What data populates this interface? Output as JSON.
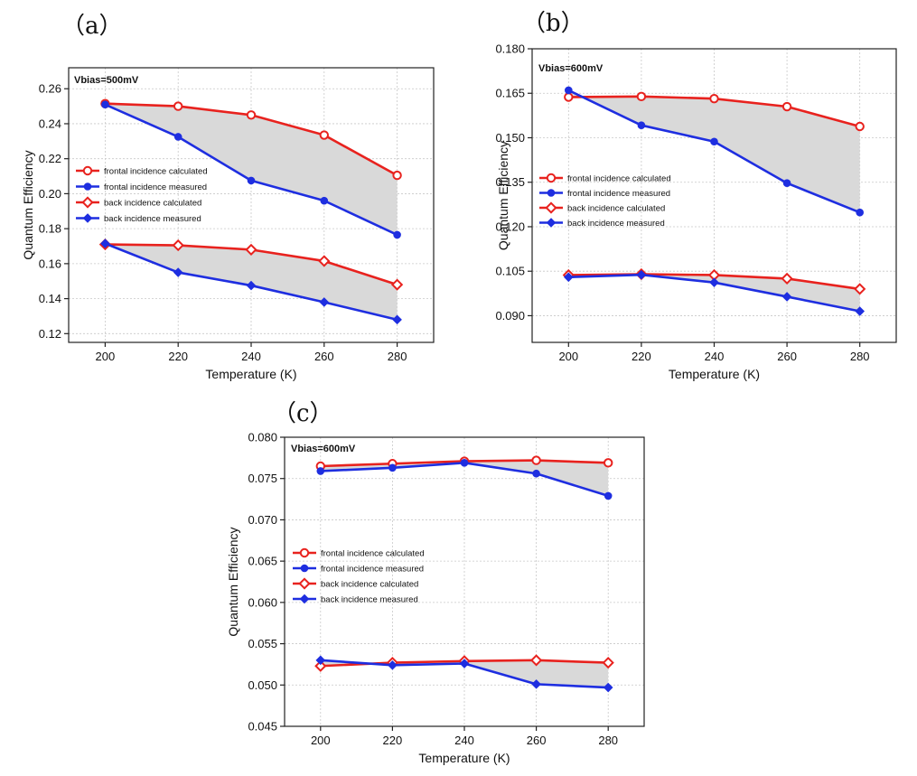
{
  "chart_data": [
    {
      "panel_label": "（a）",
      "type": "line",
      "annotation": "Vbias=500mV",
      "xlabel": "Temperature (K)",
      "ylabel": "Quantum Efficiency",
      "x": [
        200,
        220,
        240,
        260,
        280
      ],
      "xlim": [
        190,
        290
      ],
      "ylim": [
        0.115,
        0.272
      ],
      "yticks": [
        0.12,
        0.14,
        0.16,
        0.18,
        0.2,
        0.22,
        0.24,
        0.26
      ],
      "ytick_labels": [
        "0.12",
        "0.14",
        "0.16",
        "0.18",
        "0.20",
        "0.22",
        "0.24",
        "0.26"
      ],
      "xticks": [
        200,
        220,
        240,
        260,
        280
      ],
      "xtick_labels": [
        "200",
        "220",
        "240",
        "260",
        "280"
      ],
      "grid": true,
      "legend_position": "middle-left",
      "series": [
        {
          "name": "frontal incidence calculated",
          "values": [
            0.2515,
            0.25,
            0.245,
            0.2335,
            0.2105
          ],
          "color": "#e8221e",
          "marker": "circle-open"
        },
        {
          "name": "frontal incidence measured",
          "values": [
            0.251,
            0.2325,
            0.2075,
            0.196,
            0.1765
          ],
          "color": "#1e2ee0",
          "marker": "circle-filled"
        },
        {
          "name": "back incidence calculated",
          "values": [
            0.171,
            0.1705,
            0.168,
            0.1615,
            0.148
          ],
          "color": "#e8221e",
          "marker": "diamond-open"
        },
        {
          "name": "back incidence measured",
          "values": [
            0.1715,
            0.155,
            0.1475,
            0.138,
            0.128
          ],
          "color": "#1e2ee0",
          "marker": "diamond-filled"
        }
      ],
      "shaded_regions": [
        [
          0,
          1
        ],
        [
          2,
          3
        ]
      ]
    },
    {
      "panel_label": "（b）",
      "type": "line",
      "annotation": "Vbias=600mV",
      "xlabel": "Temperature (K)",
      "ylabel": "Quantum Efficiency",
      "x": [
        200,
        220,
        240,
        260,
        280
      ],
      "xlim": [
        190,
        290
      ],
      "ylim": [
        0.081,
        0.18
      ],
      "yticks": [
        0.09,
        0.105,
        0.12,
        0.135,
        0.15,
        0.165,
        0.18
      ],
      "ytick_labels": [
        "0.090",
        "0.105",
        "0.120",
        "0.135",
        "0.150",
        "0.165",
        "0.180"
      ],
      "xticks": [
        200,
        220,
        240,
        260,
        280
      ],
      "xtick_labels": [
        "200",
        "220",
        "240",
        "260",
        "280"
      ],
      "grid": true,
      "legend_position": "middle-left",
      "series": [
        {
          "name": "frontal incidence calculated",
          "values": [
            0.1637,
            0.1639,
            0.1632,
            0.1605,
            0.1538
          ],
          "color": "#e8221e",
          "marker": "circle-open"
        },
        {
          "name": "frontal incidence measured",
          "values": [
            0.166,
            0.1542,
            0.1487,
            0.1347,
            0.1248
          ],
          "color": "#1e2ee0",
          "marker": "circle-filled"
        },
        {
          "name": "back incidence calculated",
          "values": [
            0.1037,
            0.104,
            0.1037,
            0.1025,
            0.099
          ],
          "color": "#e8221e",
          "marker": "diamond-open"
        },
        {
          "name": "back incidence measured",
          "values": [
            0.103,
            0.1038,
            0.1012,
            0.0964,
            0.0915
          ],
          "color": "#1e2ee0",
          "marker": "diamond-filled"
        }
      ],
      "shaded_regions": [
        [
          0,
          1
        ],
        [
          2,
          3
        ]
      ]
    },
    {
      "panel_label": "（c）",
      "type": "line",
      "annotation": "Vbias=600mV",
      "xlabel": "Temperature (K)",
      "ylabel": "Quantum Efficiency",
      "x": [
        200,
        220,
        240,
        260,
        280
      ],
      "xlim": [
        190,
        290
      ],
      "ylim": [
        0.045,
        0.08
      ],
      "yticks": [
        0.045,
        0.05,
        0.055,
        0.06,
        0.065,
        0.07,
        0.075,
        0.08
      ],
      "ytick_labels": [
        "0.045",
        "0.050",
        "0.055",
        "0.060",
        "0.065",
        "0.070",
        "0.075",
        "0.080"
      ],
      "xticks": [
        200,
        220,
        240,
        260,
        280
      ],
      "xtick_labels": [
        "200",
        "220",
        "240",
        "260",
        "280"
      ],
      "grid": true,
      "legend_position": "middle-left",
      "series": [
        {
          "name": "frontal incidence calculated",
          "values": [
            0.0765,
            0.0768,
            0.0771,
            0.0772,
            0.0769
          ],
          "color": "#e8221e",
          "marker": "circle-open"
        },
        {
          "name": "frontal incidence measured",
          "values": [
            0.0759,
            0.0763,
            0.0769,
            0.0756,
            0.0729
          ],
          "color": "#1e2ee0",
          "marker": "circle-filled"
        },
        {
          "name": "back incidence calculated",
          "values": [
            0.0523,
            0.0527,
            0.0529,
            0.053,
            0.0527
          ],
          "color": "#e8221e",
          "marker": "diamond-open"
        },
        {
          "name": "back incidence measured",
          "values": [
            0.053,
            0.0524,
            0.0526,
            0.0501,
            0.0497
          ],
          "color": "#1e2ee0",
          "marker": "diamond-filled"
        }
      ],
      "shaded_regions": [
        [
          0,
          1
        ],
        [
          2,
          3
        ]
      ]
    }
  ],
  "style": {
    "shade_color": "#d9d9d9",
    "grid_color": "#c8c8c8",
    "axis_color": "#222222"
  }
}
